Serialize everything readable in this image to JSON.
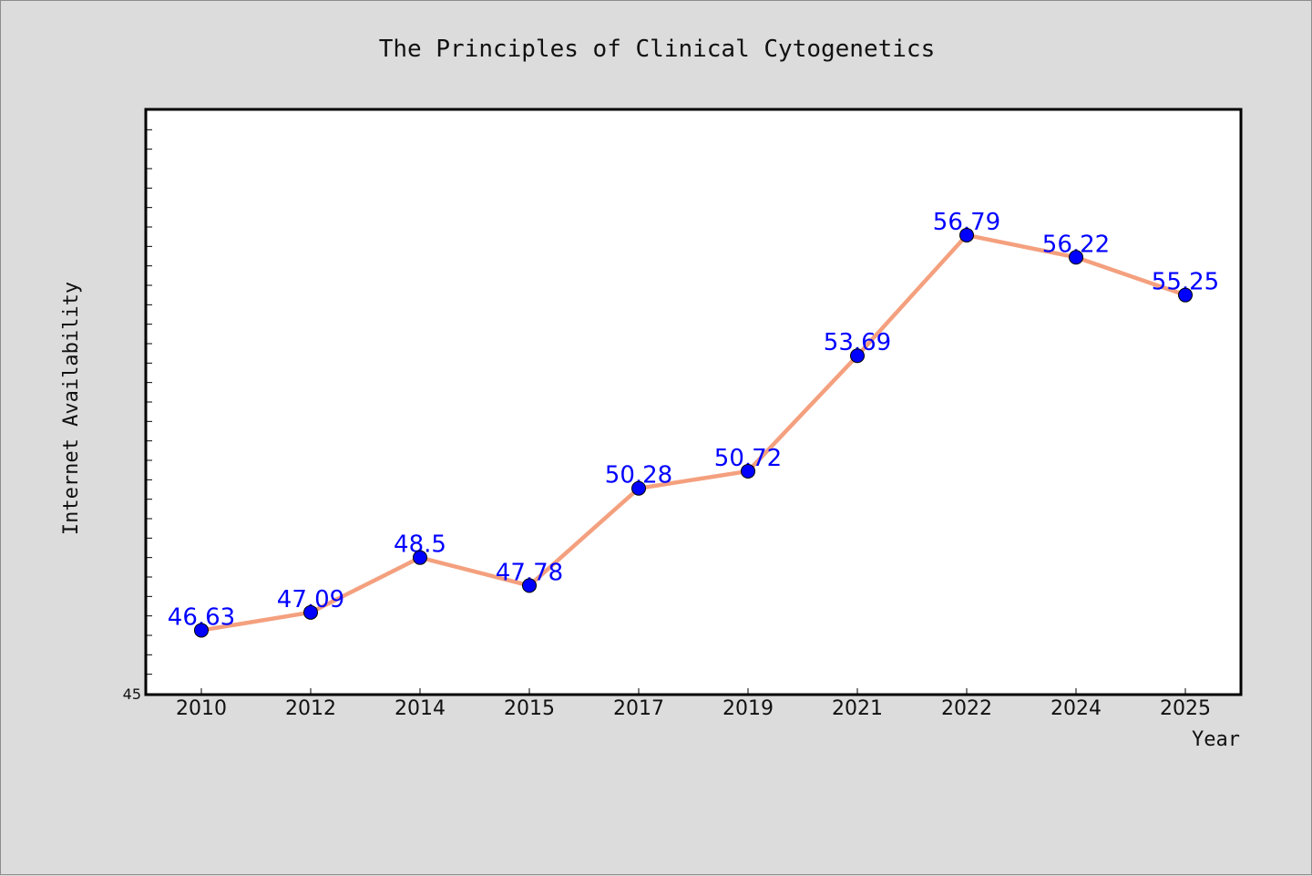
{
  "chart_data": {
    "type": "line",
    "title": "The Principles of Clinical Cytogenetics",
    "xlabel": "Year",
    "ylabel": "Internet Availability",
    "categories": [
      "2010",
      "2012",
      "2014",
      "2015",
      "2017",
      "2019",
      "2021",
      "2022",
      "2024",
      "2025"
    ],
    "series": [
      {
        "values": [
          46.63,
          47.09,
          48.5,
          47.78,
          50.28,
          50.72,
          53.69,
          56.79,
          56.22,
          55.25
        ]
      }
    ],
    "data_labels": [
      "46.63",
      "47.09",
      "48.5",
      "47.78",
      "50.28",
      "50.72",
      "53.69",
      "56.79",
      "56.22",
      "55.25"
    ],
    "ylim": [
      45,
      60
    ],
    "y_tick_labels": [
      "45"
    ],
    "grid": false,
    "legend": "none",
    "colors": {
      "line": "#f4a07e",
      "marker": "#0000ff",
      "label": "#0000ff",
      "plot_bg": "#ffffff",
      "page_bg": "#dcdcdc"
    }
  }
}
